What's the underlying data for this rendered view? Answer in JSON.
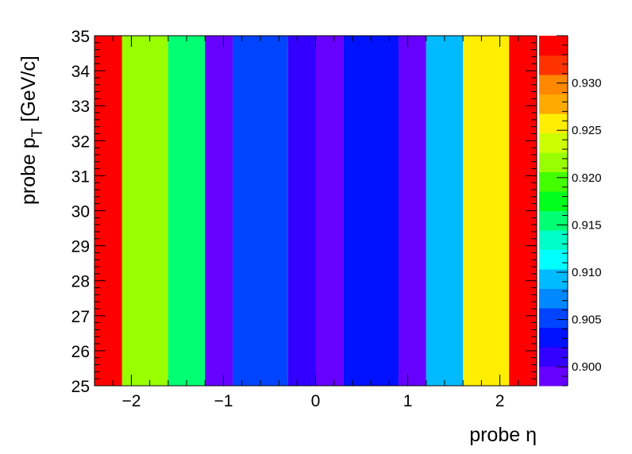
{
  "chart_data": {
    "type": "heatmap",
    "xlabel": "probe η",
    "ylabel_main": "probe p",
    "ylabel_sub": "T",
    "ylabel_unit": "[GeV/c]",
    "xlim": [
      -2.4,
      2.4
    ],
    "ylim": [
      25,
      35
    ],
    "x_ticks": [
      -2,
      -1,
      0,
      1,
      2
    ],
    "x_tick_labels": [
      "−2",
      "−1",
      "0",
      "1",
      "2"
    ],
    "y_ticks": [
      25,
      26,
      27,
      28,
      29,
      30,
      31,
      32,
      33,
      34,
      35
    ],
    "y_tick_labels": [
      "25",
      "26",
      "27",
      "28",
      "29",
      "30",
      "31",
      "32",
      "33",
      "34",
      "35"
    ],
    "eta_edges": [
      -2.4,
      -2.1,
      -1.6,
      -1.2,
      -0.9,
      -0.3,
      0.0,
      0.3,
      0.9,
      1.2,
      1.6,
      2.1,
      2.4
    ],
    "pt_edges": [
      25,
      35
    ],
    "values": [
      0.935,
      0.9225,
      0.9155,
      0.8985,
      0.906,
      0.9015,
      0.8985,
      0.9025,
      0.8985,
      0.9095,
      0.9255,
      0.935
    ],
    "zlim": [
      0.898,
      0.935
    ],
    "z_ticks": [
      0.9,
      0.905,
      0.91,
      0.915,
      0.92,
      0.925,
      0.93
    ],
    "z_tick_labels": [
      "0.900",
      "0.905",
      "0.910",
      "0.915",
      "0.920",
      "0.925",
      "0.930"
    ],
    "palette": [
      "#6600ff",
      "#3300ff",
      "#0011ff",
      "#0044ff",
      "#0088ff",
      "#00bbff",
      "#00ffff",
      "#00ffc8",
      "#00ff73",
      "#00ff1a",
      "#44ff00",
      "#99ff00",
      "#ccff00",
      "#ffee00",
      "#ffaa00",
      "#ff8800",
      "#ff3300",
      "#ff0000"
    ]
  }
}
